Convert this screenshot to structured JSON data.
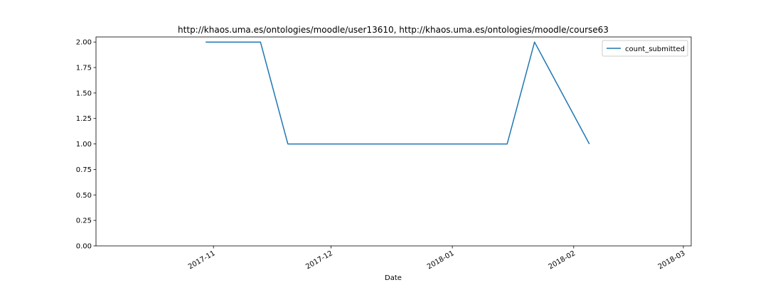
{
  "chart_data": {
    "type": "line",
    "title": "http://khaos.uma.es/ontologies/moodle/user13610, http://khaos.uma.es/ontologies/moodle/course63",
    "xlabel": "Date",
    "ylabel": "",
    "x_type": "date",
    "xlim": [
      "2017-10-02",
      "2018-03-03"
    ],
    "ylim": [
      0,
      2.05
    ],
    "yticks": [
      0.0,
      0.25,
      0.5,
      0.75,
      1.0,
      1.25,
      1.5,
      1.75,
      2.0
    ],
    "ytick_labels": [
      "0.00",
      "0.25",
      "0.50",
      "0.75",
      "1.00",
      "1.25",
      "1.50",
      "1.75",
      "2.00"
    ],
    "xticks": [
      "2017-11-01",
      "2017-12-01",
      "2018-01-01",
      "2018-02-01",
      "2018-03-01"
    ],
    "xtick_labels": [
      "2017-11",
      "2017-12",
      "2018-01",
      "2018-02",
      "2018-03"
    ],
    "grid": false,
    "legend_position": "top-right",
    "series": [
      {
        "name": "count_submitted",
        "color": "#1f77b4",
        "x": [
          "2017-10-30",
          "2017-11-13",
          "2017-11-20",
          "2018-01-15",
          "2018-01-22",
          "2018-02-05"
        ],
        "y": [
          2,
          2,
          1,
          1,
          2,
          1
        ]
      }
    ]
  }
}
